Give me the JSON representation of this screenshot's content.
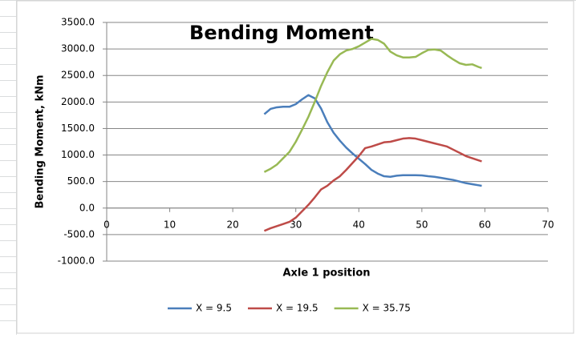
{
  "chart_data": {
    "type": "line",
    "title": "Bending Moment",
    "x_label": "Axle 1 position",
    "y_label": "Bending Moment, kNm",
    "x": [
      25,
      26,
      27,
      28,
      29,
      30,
      31,
      32,
      33,
      34,
      35,
      36,
      37,
      38,
      39,
      40,
      41,
      42,
      43,
      44,
      45,
      46,
      47,
      48,
      49,
      50,
      51,
      52,
      53,
      54,
      55,
      56,
      57,
      58,
      59,
      59.5
    ],
    "series": [
      {
        "name": "X = 9.5",
        "color": "#4a7ebb",
        "values": [
          1770,
          1870,
          1900,
          1910,
          1910,
          1960,
          2050,
          2130,
          2070,
          1880,
          1620,
          1420,
          1270,
          1140,
          1030,
          930,
          830,
          720,
          650,
          600,
          590,
          610,
          620,
          620,
          620,
          615,
          600,
          590,
          570,
          550,
          530,
          500,
          470,
          450,
          430,
          420
        ]
      },
      {
        "name": "X = 19.5",
        "color": "#be4b48",
        "values": [
          -430,
          -380,
          -340,
          -300,
          -260,
          -180,
          -60,
          60,
          200,
          350,
          420,
          520,
          600,
          720,
          850,
          980,
          1130,
          1160,
          1200,
          1240,
          1250,
          1280,
          1310,
          1320,
          1310,
          1280,
          1250,
          1220,
          1190,
          1160,
          1100,
          1040,
          980,
          940,
          900,
          880
        ]
      },
      {
        "name": "X = 35.75",
        "color": "#98b954",
        "values": [
          680,
          740,
          820,
          940,
          1060,
          1250,
          1480,
          1720,
          2000,
          2300,
          2560,
          2780,
          2900,
          2970,
          3000,
          3050,
          3120,
          3190,
          3170,
          3100,
          2950,
          2880,
          2840,
          2840,
          2850,
          2920,
          2980,
          2990,
          2970,
          2880,
          2800,
          2730,
          2700,
          2710,
          2660,
          2640
        ]
      }
    ],
    "xlim": [
      0,
      70
    ],
    "xticks": [
      0,
      10,
      20,
      30,
      40,
      50,
      60,
      70
    ],
    "ylim": [
      -1000,
      3500
    ],
    "yticks": [
      {
        "value": -1000,
        "label": "-1000.0"
      },
      {
        "value": -500,
        "label": "-500.0"
      },
      {
        "value": 0,
        "label": "0.0"
      },
      {
        "value": 500,
        "label": "500.0"
      },
      {
        "value": 1000,
        "label": "1000.0"
      },
      {
        "value": 1500,
        "label": "1500.0"
      },
      {
        "value": 2000,
        "label": "2000.0"
      },
      {
        "value": 2500,
        "label": "2500.0"
      },
      {
        "value": 3000,
        "label": "3000.0"
      },
      {
        "value": 3500,
        "label": "3500.0"
      }
    ],
    "grid": true,
    "legend": "bottom"
  }
}
